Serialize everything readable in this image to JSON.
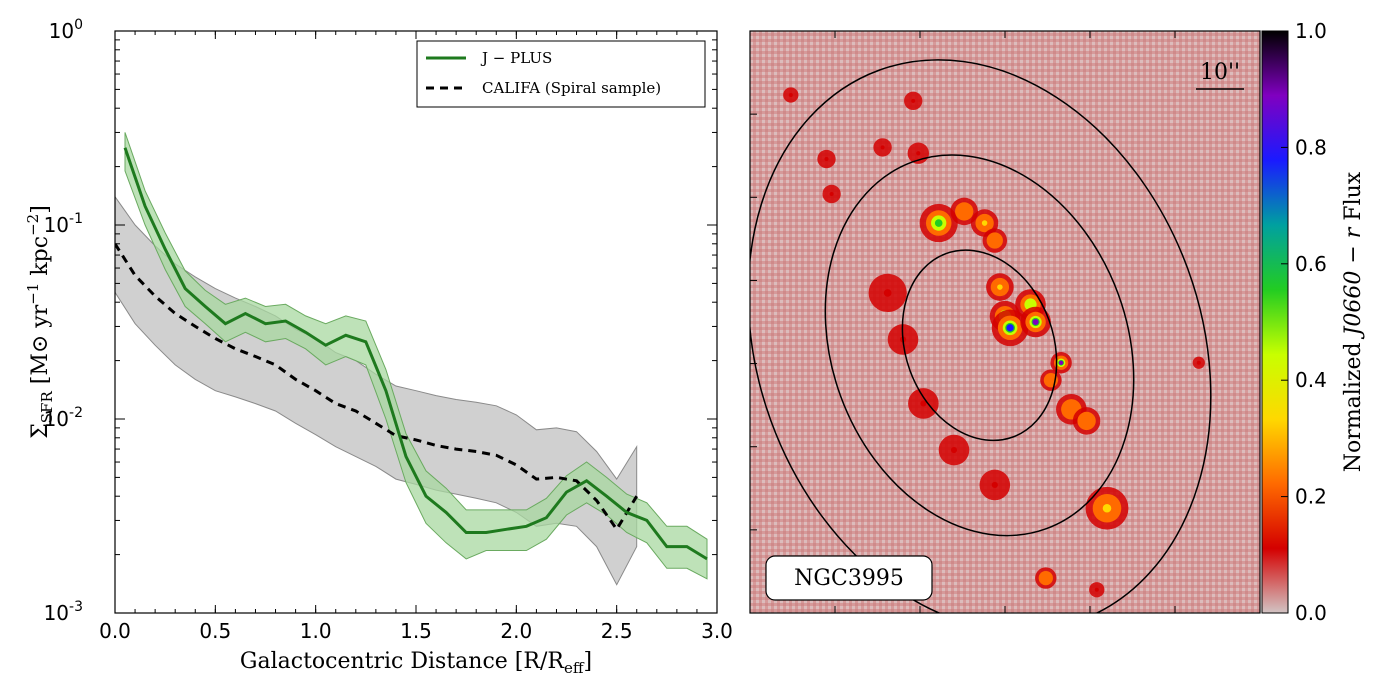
{
  "chart_data": [
    {
      "type": "line",
      "yscale": "log",
      "xlim": [
        0.0,
        3.0
      ],
      "ylim": [
        0.001,
        1.0
      ],
      "xlabel": "Galactocentric Distance [R/R",
      "xlabel_sub": "eff",
      "xlabel_close": "]",
      "ylabel_sigma": "Σ",
      "ylabel_sub": "SFR",
      "ylabel_rest": " [M⊙ yr",
      "ylabel_exp1": "−1",
      "ylabel_mid": " kpc",
      "ylabel_exp2": "−2",
      "ylabel_end": "]",
      "x_ticks": [
        {
          "value": 0.0,
          "label": "0.0"
        },
        {
          "value": 0.5,
          "label": "0.5"
        },
        {
          "value": 1.0,
          "label": "1.0"
        },
        {
          "value": 1.5,
          "label": "1.5"
        },
        {
          "value": 2.0,
          "label": "2.0"
        },
        {
          "value": 2.5,
          "label": "2.5"
        },
        {
          "value": 3.0,
          "label": "3.0"
        }
      ],
      "y_ticks": [
        {
          "value": 0.001,
          "base": "10",
          "exp": "-3"
        },
        {
          "value": 0.01,
          "base": "10",
          "exp": "-2"
        },
        {
          "value": 0.1,
          "base": "10",
          "exp": "-1"
        },
        {
          "value": 1.0,
          "base": "10",
          "exp": "0"
        }
      ],
      "legend_position": "top-right",
      "series": [
        {
          "name": "J − PLUS",
          "color": "#1e7a1e",
          "style": "solid",
          "band_color": "#a8d8a0",
          "x": [
            0.05,
            0.15,
            0.25,
            0.35,
            0.45,
            0.55,
            0.65,
            0.75,
            0.85,
            0.95,
            1.05,
            1.15,
            1.25,
            1.35,
            1.45,
            1.55,
            1.65,
            1.75,
            1.85,
            1.95,
            2.05,
            2.15,
            2.25,
            2.35,
            2.45,
            2.55,
            2.65,
            2.75,
            2.85,
            2.95
          ],
          "y": [
            0.25,
            0.125,
            0.075,
            0.047,
            0.038,
            0.031,
            0.035,
            0.031,
            0.032,
            0.028,
            0.024,
            0.027,
            0.025,
            0.014,
            0.0064,
            0.004,
            0.0033,
            0.0026,
            0.0026,
            0.0027,
            0.0028,
            0.0031,
            0.0042,
            0.0048,
            0.004,
            0.0033,
            0.003,
            0.0022,
            0.0022,
            0.0019
          ],
          "lower": [
            0.19,
            0.1,
            0.059,
            0.038,
            0.031,
            0.025,
            0.028,
            0.025,
            0.026,
            0.023,
            0.019,
            0.021,
            0.019,
            0.01,
            0.0047,
            0.0029,
            0.0023,
            0.0019,
            0.0021,
            0.0021,
            0.0021,
            0.0024,
            0.0032,
            0.0037,
            0.0032,
            0.0026,
            0.0023,
            0.0017,
            0.0017,
            0.0015
          ],
          "upper": [
            0.3,
            0.15,
            0.091,
            0.058,
            0.046,
            0.039,
            0.042,
            0.038,
            0.039,
            0.034,
            0.031,
            0.034,
            0.032,
            0.018,
            0.0084,
            0.0054,
            0.0044,
            0.0034,
            0.0034,
            0.0034,
            0.0034,
            0.0039,
            0.0051,
            0.006,
            0.005,
            0.0041,
            0.0037,
            0.0028,
            0.0028,
            0.0024
          ]
        },
        {
          "name": "CALIFA (Spiral sample)",
          "color": "#000000",
          "style": "dashed",
          "band_color": "#c4c4c4",
          "x": [
            0.0,
            0.1,
            0.2,
            0.3,
            0.4,
            0.5,
            0.6,
            0.7,
            0.8,
            0.9,
            1.0,
            1.1,
            1.2,
            1.3,
            1.4,
            1.5,
            1.6,
            1.7,
            1.8,
            1.9,
            2.0,
            2.1,
            2.2,
            2.3,
            2.4,
            2.5,
            2.6
          ],
          "y": [
            0.08,
            0.055,
            0.043,
            0.035,
            0.03,
            0.026,
            0.023,
            0.021,
            0.019,
            0.016,
            0.014,
            0.012,
            0.011,
            0.0095,
            0.0082,
            0.0078,
            0.0073,
            0.007,
            0.0068,
            0.0065,
            0.0058,
            0.0049,
            0.005,
            0.0048,
            0.0038,
            0.0027,
            0.004
          ],
          "lower": [
            0.045,
            0.031,
            0.024,
            0.019,
            0.016,
            0.014,
            0.013,
            0.012,
            0.011,
            0.0095,
            0.0083,
            0.0072,
            0.0064,
            0.0057,
            0.0049,
            0.0046,
            0.0043,
            0.0041,
            0.0039,
            0.0037,
            0.0033,
            0.0028,
            0.0029,
            0.0028,
            0.0022,
            0.0014,
            0.0022
          ],
          "upper": [
            0.14,
            0.1,
            0.078,
            0.063,
            0.054,
            0.047,
            0.042,
            0.038,
            0.034,
            0.029,
            0.026,
            0.022,
            0.02,
            0.017,
            0.0148,
            0.014,
            0.0132,
            0.0126,
            0.0122,
            0.0117,
            0.0105,
            0.0088,
            0.009,
            0.0086,
            0.0068,
            0.0049,
            0.0072
          ]
        }
      ]
    },
    {
      "type": "heatmap",
      "title": "",
      "annotation": "NGC3995",
      "scale_bar_label": "10''",
      "colorbar": {
        "label_prefix": "Normalized ",
        "label_italic": "J0660",
        "label_mid": " − ",
        "label_italic2": "r",
        "label_suffix": " Flux",
        "range": [
          0.0,
          1.0
        ],
        "ticks": [
          {
            "value": 0.0,
            "label": "0.0"
          },
          {
            "value": 0.2,
            "label": "0.2"
          },
          {
            "value": 0.4,
            "label": "0.4"
          },
          {
            "value": 0.6,
            "label": "0.6"
          },
          {
            "value": 0.8,
            "label": "0.8"
          },
          {
            "value": 1.0,
            "label": "1.0"
          }
        ],
        "colors": [
          "#d2c4c4",
          "#d40000",
          "#ff6a00",
          "#ffd800",
          "#c8ff00",
          "#22cc22",
          "#00a0a0",
          "#1a1aff",
          "#8000c0",
          "#000000"
        ]
      },
      "background_color": "#d69a9a",
      "ellipses": [
        {
          "cx": 0.45,
          "cy": 0.54,
          "rx": 0.145,
          "ry": 0.215,
          "rotation_deg": -20
        },
        {
          "cx": 0.45,
          "cy": 0.54,
          "rx": 0.29,
          "ry": 0.43,
          "rotation_deg": -20
        },
        {
          "cx": 0.45,
          "cy": 0.54,
          "rx": 0.435,
          "ry": 0.645,
          "rotation_deg": -20
        }
      ],
      "clumps": [
        {
          "x": 0.37,
          "y": 0.33,
          "v": 0.55,
          "s": 0.025
        },
        {
          "x": 0.42,
          "y": 0.31,
          "v": 0.25,
          "s": 0.018
        },
        {
          "x": 0.46,
          "y": 0.33,
          "v": 0.3,
          "s": 0.018
        },
        {
          "x": 0.48,
          "y": 0.36,
          "v": 0.22,
          "s": 0.016
        },
        {
          "x": 0.49,
          "y": 0.44,
          "v": 0.3,
          "s": 0.018
        },
        {
          "x": 0.5,
          "y": 0.49,
          "v": 0.45,
          "s": 0.02
        },
        {
          "x": 0.51,
          "y": 0.51,
          "v": 0.75,
          "s": 0.024
        },
        {
          "x": 0.55,
          "y": 0.47,
          "v": 0.45,
          "s": 0.02
        },
        {
          "x": 0.56,
          "y": 0.5,
          "v": 0.85,
          "s": 0.02
        },
        {
          "x": 0.61,
          "y": 0.57,
          "v": 0.85,
          "s": 0.014
        },
        {
          "x": 0.59,
          "y": 0.6,
          "v": 0.2,
          "s": 0.014
        },
        {
          "x": 0.63,
          "y": 0.65,
          "v": 0.2,
          "s": 0.02
        },
        {
          "x": 0.66,
          "y": 0.67,
          "v": 0.22,
          "s": 0.018
        },
        {
          "x": 0.7,
          "y": 0.82,
          "v": 0.3,
          "s": 0.028
        },
        {
          "x": 0.58,
          "y": 0.94,
          "v": 0.2,
          "s": 0.014
        },
        {
          "x": 0.27,
          "y": 0.45,
          "v": 0.1,
          "s": 0.025
        },
        {
          "x": 0.3,
          "y": 0.53,
          "v": 0.06,
          "s": 0.02
        },
        {
          "x": 0.34,
          "y": 0.64,
          "v": 0.06,
          "s": 0.02
        },
        {
          "x": 0.4,
          "y": 0.72,
          "v": 0.08,
          "s": 0.02
        },
        {
          "x": 0.48,
          "y": 0.78,
          "v": 0.06,
          "s": 0.02
        },
        {
          "x": 0.33,
          "y": 0.21,
          "v": 0.1,
          "s": 0.014
        },
        {
          "x": 0.26,
          "y": 0.2,
          "v": 0.06,
          "s": 0.012
        },
        {
          "x": 0.15,
          "y": 0.22,
          "v": 0.06,
          "s": 0.012
        },
        {
          "x": 0.16,
          "y": 0.28,
          "v": 0.08,
          "s": 0.012
        },
        {
          "x": 0.08,
          "y": 0.11,
          "v": 0.06,
          "s": 0.01
        },
        {
          "x": 0.32,
          "y": 0.12,
          "v": 0.08,
          "s": 0.012
        },
        {
          "x": 0.88,
          "y": 0.57,
          "v": 0.08,
          "s": 0.008
        },
        {
          "x": 0.68,
          "y": 0.96,
          "v": 0.06,
          "s": 0.01
        }
      ]
    }
  ]
}
